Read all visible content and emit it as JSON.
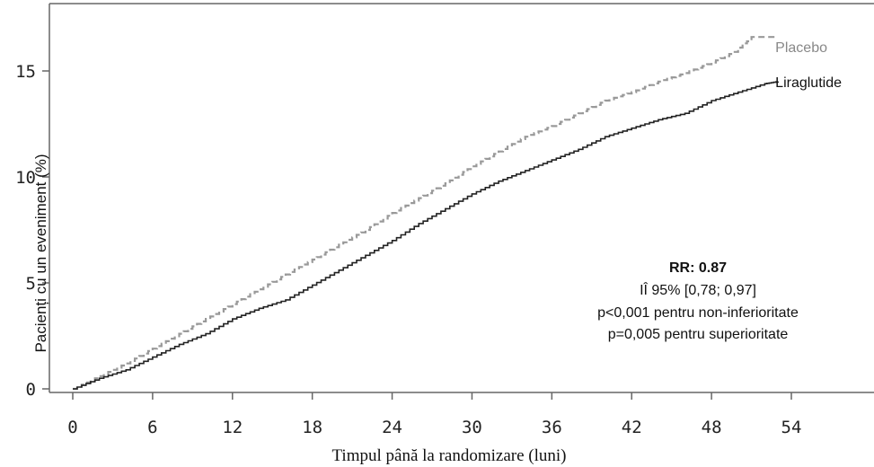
{
  "chart_data": {
    "type": "line",
    "xlabel": "Timpul până la randomizare (luni)",
    "ylabel": "Pacienți cu un eveniment (%)",
    "x_ticks": [
      0,
      6,
      12,
      18,
      24,
      30,
      36,
      42,
      48,
      54
    ],
    "y_ticks": [
      0,
      5,
      10,
      15
    ],
    "xlim": [
      -1,
      60
    ],
    "ylim": [
      -0.3,
      18
    ],
    "grid": false,
    "legend": "inline labels at line ends (right)",
    "series": [
      {
        "name": "Placebo",
        "style": "dashed",
        "color": "#999999",
        "x": [
          0,
          2,
          4,
          6,
          8,
          10,
          12,
          14,
          16,
          18,
          20,
          22,
          24,
          26,
          28,
          30,
          32,
          34,
          36,
          38,
          40,
          42,
          44,
          46,
          48,
          50,
          51,
          52,
          53
        ],
        "y": [
          0,
          0.6,
          1.2,
          1.9,
          2.6,
          3.3,
          4.0,
          4.7,
          5.4,
          6.1,
          6.8,
          7.5,
          8.3,
          9.0,
          9.7,
          10.5,
          11.2,
          11.9,
          12.4,
          13.0,
          13.6,
          14.0,
          14.5,
          14.9,
          15.4,
          16.0,
          16.6,
          16.6,
          16.6
        ]
      },
      {
        "name": "Liraglutide",
        "style": "solid",
        "color": "#222222",
        "x": [
          0,
          2,
          4,
          6,
          8,
          10,
          12,
          14,
          16,
          18,
          20,
          22,
          24,
          26,
          28,
          30,
          32,
          34,
          36,
          38,
          40,
          42,
          44,
          46,
          48,
          50,
          52,
          53
        ],
        "y": [
          0,
          0.5,
          0.9,
          1.5,
          2.1,
          2.6,
          3.3,
          3.8,
          4.2,
          4.9,
          5.6,
          6.3,
          7.0,
          7.8,
          8.5,
          9.2,
          9.8,
          10.3,
          10.8,
          11.3,
          11.9,
          12.3,
          12.7,
          13.0,
          13.6,
          14.0,
          14.4,
          14.5
        ]
      }
    ],
    "annotations": {
      "rr": "RR: 0.87",
      "ci": "IÎ 95% [0,78; 0,97]",
      "noninf": "p<0,001 pentru non-inferioritate",
      "sup": "p=0,005 pentru superioritate"
    }
  }
}
